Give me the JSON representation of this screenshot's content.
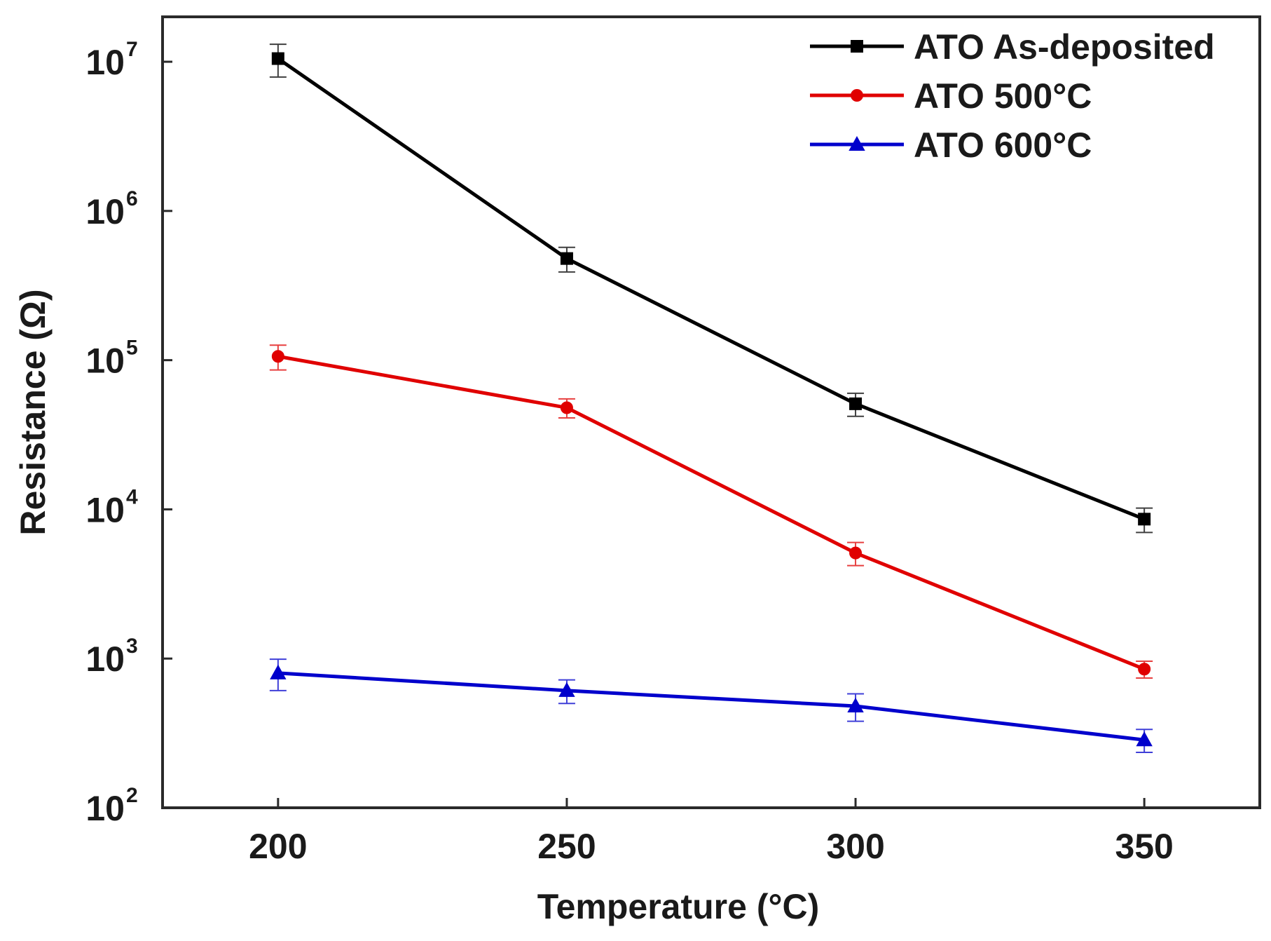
{
  "chart_data": {
    "type": "line",
    "yscale": "log",
    "title": "",
    "xlabel": "Temperature (°C)",
    "ylabel": "Resistance (Ω)",
    "x": [
      200,
      250,
      300,
      350
    ],
    "xlim": [
      180,
      370
    ],
    "ylim": [
      100,
      20000000
    ],
    "xticks": [
      "200",
      "250",
      "300",
      "350"
    ],
    "ytick_base": "10",
    "ytick_exponents": [
      "2",
      "3",
      "4",
      "5",
      "6",
      "7"
    ],
    "legend_position": "top-right",
    "grid": false,
    "series": [
      {
        "name": "ATO As-deposited",
        "color": "#000000",
        "marker": "square",
        "values": [
          10500000,
          480000,
          51000,
          8600
        ],
        "errors": [
          2600000,
          90000,
          9000,
          1600
        ]
      },
      {
        "name": "ATO 500°C",
        "color": "#e00000",
        "marker": "circle",
        "values": [
          106000,
          48000,
          5100,
          850
        ],
        "errors": [
          20000,
          7000,
          900,
          110
        ]
      },
      {
        "name": "ATO 600°C",
        "color": "#0000cc",
        "marker": "triangle",
        "values": [
          800,
          610,
          480,
          285
        ],
        "errors": [
          190,
          110,
          100,
          50
        ]
      }
    ]
  }
}
